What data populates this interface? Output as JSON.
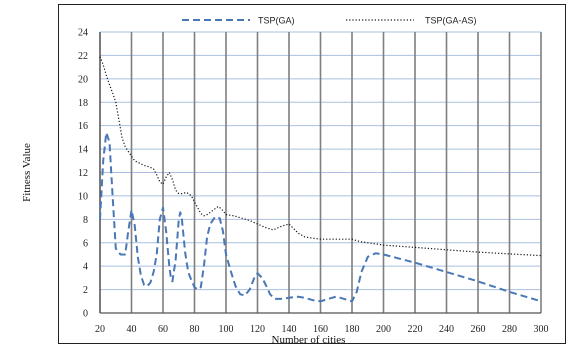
{
  "chart_data": {
    "type": "line",
    "title": "",
    "xlabel": "Number of cities",
    "ylabel": "Fitness Value",
    "xlim": [
      20,
      300
    ],
    "ylim": [
      0,
      24
    ],
    "xticks": [
      20,
      40,
      60,
      80,
      100,
      120,
      140,
      160,
      180,
      200,
      220,
      240,
      260,
      280,
      300
    ],
    "yticks": [
      0,
      2,
      4,
      6,
      8,
      10,
      12,
      14,
      16,
      18,
      20,
      22,
      24
    ],
    "grid": "vertical and horizontal",
    "legend_position": "top",
    "series": [
      {
        "name": "TSP(GA)",
        "style": "dashed",
        "color": "#4a78b6",
        "points": [
          [
            20,
            8.0
          ],
          [
            22,
            13.0
          ],
          [
            24,
            15.4
          ],
          [
            26,
            14.6
          ],
          [
            28,
            10.0
          ],
          [
            30,
            5.5
          ],
          [
            33,
            5.0
          ],
          [
            36,
            5.0
          ],
          [
            38,
            7.0
          ],
          [
            40,
            8.8
          ],
          [
            42,
            7.5
          ],
          [
            44,
            4.8
          ],
          [
            46,
            3.2
          ],
          [
            48,
            2.4
          ],
          [
            50,
            2.3
          ],
          [
            52,
            2.6
          ],
          [
            54,
            3.5
          ],
          [
            56,
            5.0
          ],
          [
            58,
            8.0
          ],
          [
            60,
            9.0
          ],
          [
            62,
            7.0
          ],
          [
            64,
            4.0
          ],
          [
            65,
            3.0
          ],
          [
            66,
            2.7
          ],
          [
            68,
            4.5
          ],
          [
            70,
            8.0
          ],
          [
            71,
            8.6
          ],
          [
            72,
            8.0
          ],
          [
            74,
            5.2
          ],
          [
            76,
            3.5
          ],
          [
            78,
            2.8
          ],
          [
            80,
            2.2
          ],
          [
            82,
            2.0
          ],
          [
            84,
            2.2
          ],
          [
            86,
            4.0
          ],
          [
            88,
            6.5
          ],
          [
            90,
            7.6
          ],
          [
            93,
            8.2
          ],
          [
            96,
            8.1
          ],
          [
            98,
            7.0
          ],
          [
            100,
            5.0
          ],
          [
            103,
            3.6
          ],
          [
            106,
            2.3
          ],
          [
            109,
            1.6
          ],
          [
            112,
            1.5
          ],
          [
            115,
            2.0
          ],
          [
            118,
            3.0
          ],
          [
            120,
            3.4
          ],
          [
            123,
            3.0
          ],
          [
            126,
            2.2
          ],
          [
            128,
            1.6
          ],
          [
            131,
            1.2
          ],
          [
            135,
            1.2
          ],
          [
            140,
            1.3
          ],
          [
            145,
            1.4
          ],
          [
            150,
            1.3
          ],
          [
            155,
            1.1
          ],
          [
            160,
            1.0
          ],
          [
            165,
            1.2
          ],
          [
            170,
            1.4
          ],
          [
            175,
            1.2
          ],
          [
            180,
            1.0
          ],
          [
            183,
            1.8
          ],
          [
            186,
            3.5
          ],
          [
            190,
            4.8
          ],
          [
            195,
            5.1
          ],
          [
            200,
            5.0
          ],
          [
            220,
            4.3
          ],
          [
            240,
            3.5
          ],
          [
            260,
            2.7
          ],
          [
            280,
            1.8
          ],
          [
            300,
            1.0
          ]
        ]
      },
      {
        "name": "TSP(GA-AS)",
        "style": "dotted",
        "color": "#111111",
        "points": [
          [
            20,
            21.9
          ],
          [
            22,
            21.2
          ],
          [
            24,
            20.3
          ],
          [
            26,
            19.5
          ],
          [
            28,
            18.8
          ],
          [
            30,
            18.0
          ],
          [
            32,
            16.5
          ],
          [
            34,
            15.0
          ],
          [
            36,
            14.2
          ],
          [
            38,
            13.8
          ],
          [
            40,
            13.4
          ],
          [
            42,
            13.0
          ],
          [
            45,
            12.8
          ],
          [
            48,
            12.6
          ],
          [
            51,
            12.5
          ],
          [
            54,
            12.3
          ],
          [
            56,
            11.8
          ],
          [
            58,
            11.2
          ],
          [
            60,
            11.0
          ],
          [
            62,
            11.6
          ],
          [
            64,
            12.0
          ],
          [
            66,
            11.4
          ],
          [
            68,
            10.5
          ],
          [
            70,
            10.2
          ],
          [
            72,
            10.2
          ],
          [
            75,
            10.3
          ],
          [
            78,
            10.0
          ],
          [
            80,
            9.5
          ],
          [
            82,
            9.0
          ],
          [
            84,
            8.5
          ],
          [
            86,
            8.3
          ],
          [
            88,
            8.4
          ],
          [
            90,
            8.6
          ],
          [
            93,
            8.9
          ],
          [
            95,
            9.1
          ],
          [
            97,
            8.9
          ],
          [
            100,
            8.4
          ],
          [
            105,
            8.3
          ],
          [
            110,
            8.1
          ],
          [
            115,
            7.9
          ],
          [
            120,
            7.6
          ],
          [
            125,
            7.3
          ],
          [
            130,
            7.1
          ],
          [
            135,
            7.4
          ],
          [
            140,
            7.6
          ],
          [
            143,
            7.2
          ],
          [
            146,
            6.8
          ],
          [
            150,
            6.5
          ],
          [
            155,
            6.4
          ],
          [
            160,
            6.3
          ],
          [
            170,
            6.3
          ],
          [
            180,
            6.3
          ],
          [
            185,
            6.1
          ],
          [
            190,
            6.0
          ],
          [
            195,
            5.9
          ],
          [
            200,
            5.8
          ],
          [
            220,
            5.6
          ],
          [
            240,
            5.4
          ],
          [
            260,
            5.2
          ],
          [
            280,
            5.05
          ],
          [
            300,
            4.9
          ]
        ]
      }
    ]
  }
}
